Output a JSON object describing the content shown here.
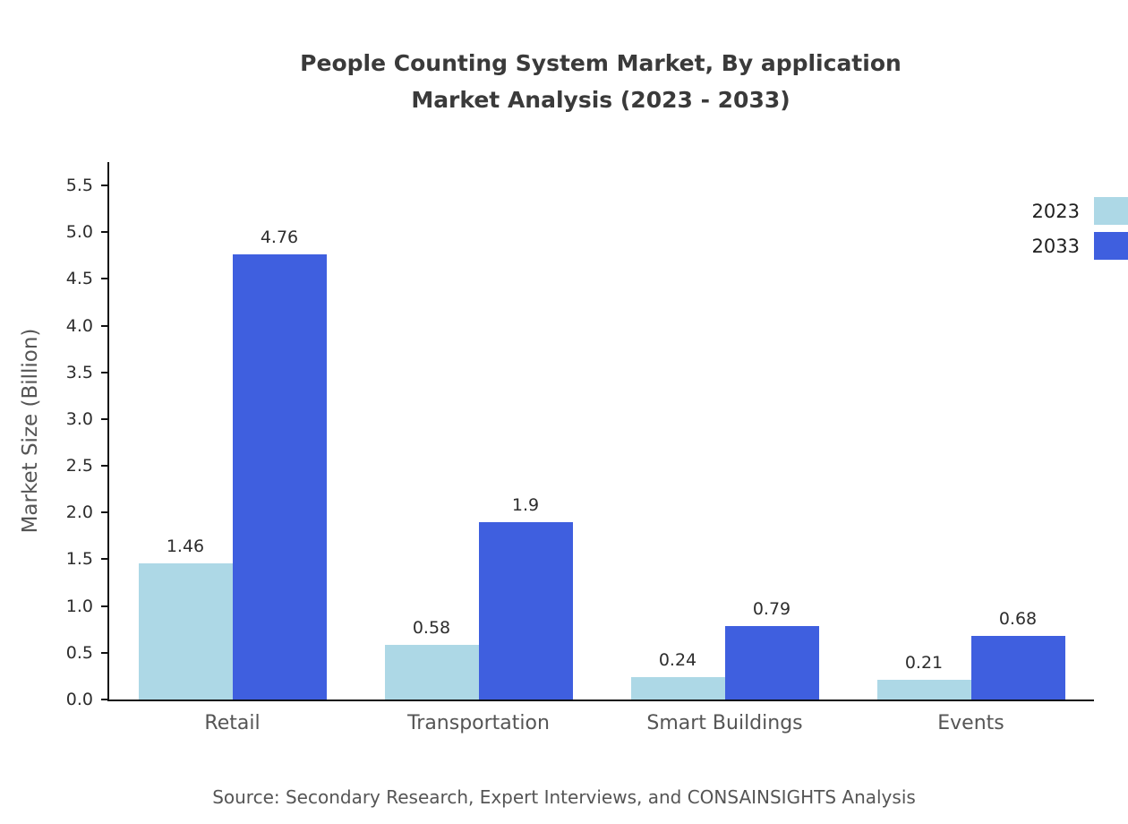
{
  "chart_data": {
    "type": "bar",
    "title_line1": "People Counting System Market, By application",
    "title_line2": "Market Analysis (2023 - 2033)",
    "ylabel": "Market Size (Billion)",
    "xlabel": "",
    "categories": [
      "Retail",
      "Transportation",
      "Smart Buildings",
      "Events"
    ],
    "series": [
      {
        "name": "2023",
        "color": "#add8e6",
        "values": [
          1.46,
          0.58,
          0.24,
          0.21
        ],
        "labels": [
          "1.46",
          "0.58",
          "0.24",
          "0.21"
        ]
      },
      {
        "name": "2033",
        "color": "#3f5fdf",
        "values": [
          4.76,
          1.9,
          0.79,
          0.68
        ],
        "labels": [
          "4.76",
          "1.9",
          "0.79",
          "0.68"
        ]
      }
    ],
    "ylim": [
      0,
      5.75
    ],
    "ytick_labels": [
      "0.0",
      "0.5",
      "1.0",
      "1.5",
      "2.0",
      "2.5",
      "3.0",
      "3.5",
      "4.0",
      "4.5",
      "5.0",
      "5.5"
    ],
    "grid": false,
    "legend_position": "top-right"
  },
  "source": "Source: Secondary Research, Expert Interviews, and CONSAINSIGHTS Analysis"
}
